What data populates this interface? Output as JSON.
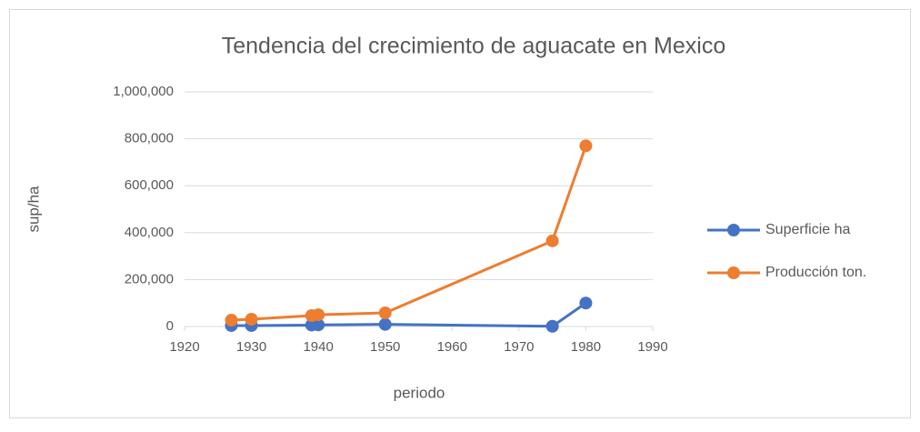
{
  "chart_data": {
    "type": "line",
    "title": "Tendencia del crecimiento de aguacate en Mexico",
    "x_label": "periodo",
    "y_label": "sup/ha",
    "x": [
      1927,
      1930,
      1939,
      1940,
      1950,
      1975,
      1980
    ],
    "series": [
      {
        "name": "Superficie ha",
        "color": "#4472c4",
        "values": [
          4000,
          4000,
          6000,
          7000,
          9000,
          1000,
          100000
        ]
      },
      {
        "name": "Producción ton.",
        "color": "#ed7d31",
        "values": [
          27000,
          31000,
          46500,
          50000,
          58000,
          365000,
          770000
        ]
      }
    ],
    "xlim": [
      1920,
      1990
    ],
    "xticks": [
      1920,
      1930,
      1940,
      1950,
      1960,
      1970,
      1980,
      1990
    ],
    "ylim": [
      0,
      1000000
    ],
    "yticks": [
      {
        "value": 0,
        "label": "0"
      },
      {
        "value": 200000,
        "label": "200,000"
      },
      {
        "value": 400000,
        "label": "400,000"
      },
      {
        "value": 600000,
        "label": "600,000"
      },
      {
        "value": 800000,
        "label": "800,000"
      },
      {
        "value": 1000000,
        "label": "1,000,000"
      }
    ],
    "grid": true,
    "legend": "right"
  }
}
